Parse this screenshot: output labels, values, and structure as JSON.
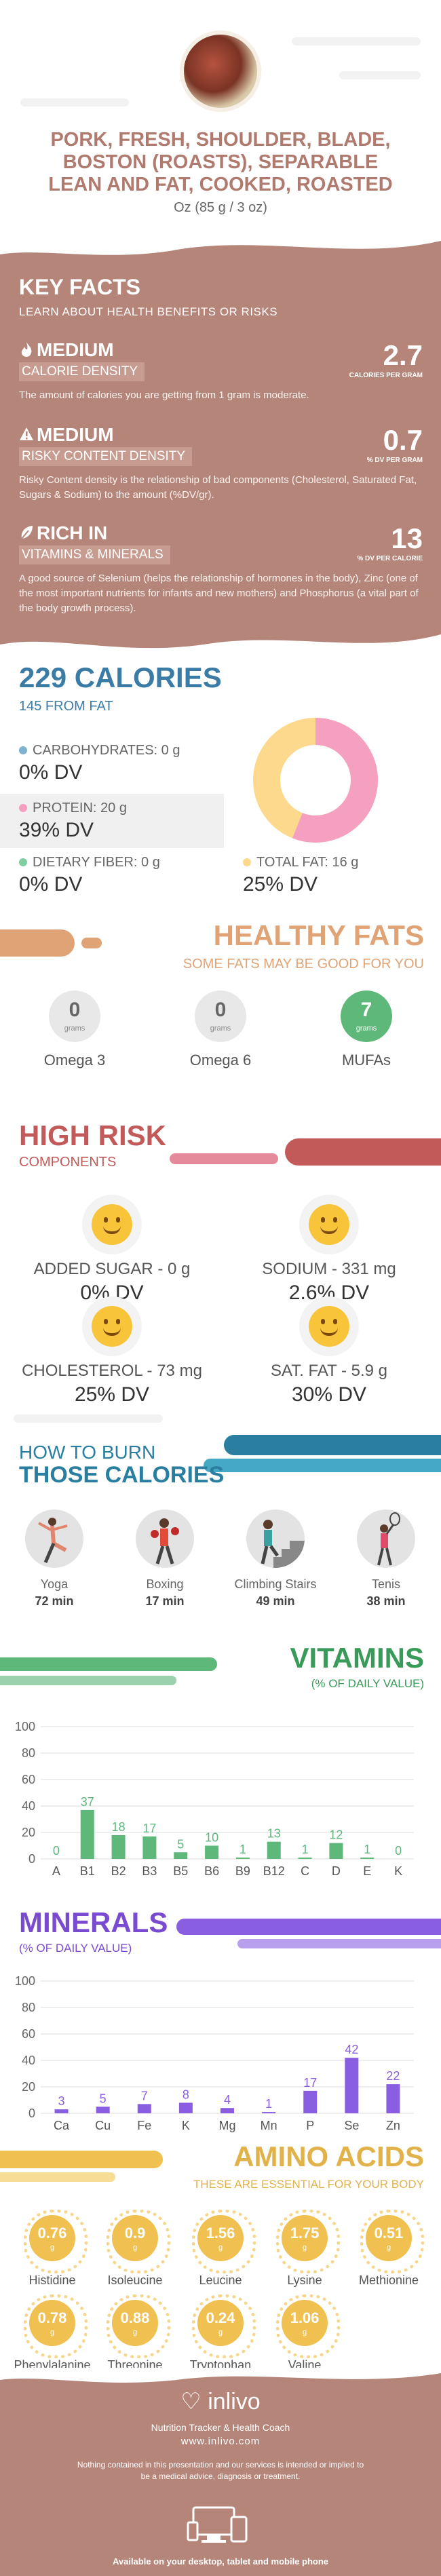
{
  "header": {
    "title_line1": "PORK, FRESH, SHOULDER, BLADE,",
    "title_line2": "BOSTON (ROASTS), SEPARABLE",
    "title_line3": "LEAN AND FAT, COOKED, ROASTED",
    "serving": "Oz (85 g / 3 oz)"
  },
  "key_facts": {
    "title": "KEY FACTS",
    "subtitle": "LEARN ABOUT HEALTH BENEFITS OR RISKS",
    "calorie_density": {
      "level": "MEDIUM",
      "label": "CALORIE DENSITY",
      "value": "2.7",
      "unit": "CALORIES PER GRAM",
      "desc": "The amount of calories you are getting from 1 gram is moderate."
    },
    "risky_density": {
      "level": "MEDIUM",
      "label": "RISKY CONTENT DENSITY",
      "value": "0.7",
      "unit": "% DV PER GRAM",
      "desc": "Risky Content density is the relationship of bad components (Cholesterol, Saturated Fat, Sugars & Sodium) to the amount (%DV/gr)."
    },
    "rich_in": {
      "level": "RICH  IN",
      "label": "VITAMINS & MINERALS",
      "value": "13",
      "unit": "% DV PER CALORIE",
      "desc": "A good source of Selenium (helps the relationship of hormones in the body), Zinc (one of the most important nutrients for infants and new mothers) and Phosphorus (a vital part of the body growth process)."
    }
  },
  "calories": {
    "title": "229 CALORIES",
    "from_fat": "145 FROM FAT",
    "carbs_label": "CARBOHYDRATES: 0 g",
    "carbs_dv": "0% DV",
    "protein_label": "PROTEIN: 20 g",
    "protein_dv": "39% DV",
    "fiber_label": "DIETARY FIBER: 0 g",
    "fiber_dv": "0% DV",
    "fat_label": "TOTAL FAT: 16 g",
    "fat_dv": "25% DV",
    "donut": {
      "protein_share": 0.56,
      "fat_share": 0.44,
      "protein_color": "#f5a0c0",
      "fat_color": "#fcd98c"
    }
  },
  "healthy_fats": {
    "title": "HEALTHY FATS",
    "subtitle": "SOME FATS MAY BE GOOD FOR YOU",
    "items": [
      {
        "value": "0",
        "unit": "grams",
        "name": "Omega 3"
      },
      {
        "value": "0",
        "unit": "grams",
        "name": "Omega 6"
      },
      {
        "value": "7",
        "unit": "grams",
        "name": "MUFAs"
      }
    ]
  },
  "high_risk": {
    "title": "HIGH RISK",
    "subtitle": "COMPONENTS",
    "items": [
      {
        "label": "ADDED SUGAR - 0 g",
        "dv": "0% DV"
      },
      {
        "label": "SODIUM - 331 mg",
        "dv": "2.6% DV"
      },
      {
        "label": "CHOLESTEROL - 73 mg",
        "dv": "25% DV"
      },
      {
        "label": "SAT. FAT - 5.9 g",
        "dv": "30% DV"
      }
    ]
  },
  "burn": {
    "title_line1": "HOW TO BURN",
    "title_line2": "THOSE CALORIES",
    "activities": [
      {
        "name": "Yoga",
        "minutes": "72 min"
      },
      {
        "name": "Boxing",
        "minutes": "17 min"
      },
      {
        "name": "Climbing Stairs",
        "minutes": "49 min"
      },
      {
        "name": "Tenis",
        "minutes": "38 min"
      }
    ]
  },
  "vitamins": {
    "title": "VITAMINS",
    "subtitle": "(% OF DAILY VALUE)"
  },
  "minerals": {
    "title": "MINERALS",
    "subtitle": "(% OF DAILY VALUE)"
  },
  "chart_data": [
    {
      "type": "bar",
      "categories": [
        "A",
        "B1",
        "B2",
        "B3",
        "B5",
        "B6",
        "B9",
        "B12",
        "C",
        "D",
        "E",
        "K"
      ],
      "values": [
        0,
        37,
        18,
        17,
        5,
        10,
        1,
        13,
        1,
        12,
        1,
        0
      ],
      "ylim": [
        0,
        100
      ],
      "yticks": [
        0,
        20,
        40,
        60,
        80,
        100
      ],
      "color": "#5db87a"
    },
    {
      "type": "bar",
      "categories": [
        "Ca",
        "Cu",
        "Fe",
        "K",
        "Mg",
        "Mn",
        "P",
        "Se",
        "Zn"
      ],
      "values": [
        3,
        5,
        7,
        8,
        4,
        1,
        17,
        42,
        22
      ],
      "ylim": [
        0,
        100
      ],
      "yticks": [
        0,
        20,
        40,
        60,
        80,
        100
      ],
      "color": "#8a5ee0"
    }
  ],
  "amino": {
    "title": "AMINO ACIDS",
    "subtitle": "THESE ARE ESSENTIAL FOR YOUR BODY",
    "unit": "g",
    "items": [
      {
        "value": "0.76",
        "name": "Histidine"
      },
      {
        "value": "0.9",
        "name": "Isoleucine"
      },
      {
        "value": "1.56",
        "name": "Leucine"
      },
      {
        "value": "1.75",
        "name": "Lysine"
      },
      {
        "value": "0.51",
        "name": "Methionine"
      },
      {
        "value": "0.78",
        "name": "Phenylalanine"
      },
      {
        "value": "0.88",
        "name": "Threonine"
      },
      {
        "value": "0.24",
        "name": "Tryptophan"
      },
      {
        "value": "1.06",
        "name": "Valine"
      }
    ]
  },
  "footer": {
    "brand": "inlivo",
    "tagline": "Nutrition Tracker & Health Coach",
    "site": "www.inlivo.com",
    "disclaimer": "Nothing contained in this presentation and our services is intended or implied to be a medical advice, diagnosis or treatment.",
    "available": "Available on your desktop, tablet and mobile phone"
  }
}
